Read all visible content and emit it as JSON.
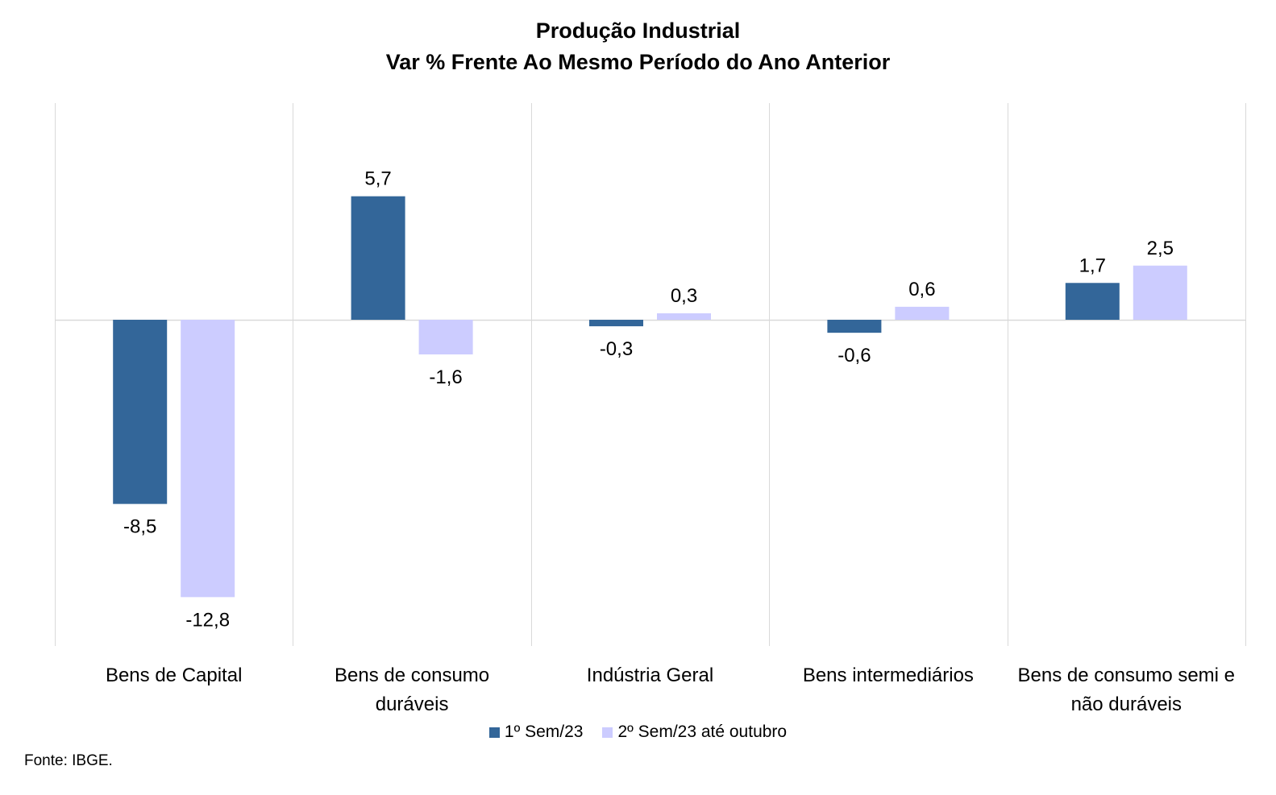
{
  "chart_data": {
    "type": "bar",
    "title": "Produção Industrial",
    "subtitle": "Var % Frente Ao Mesmo Período do Ano Anterior",
    "categories": [
      [
        "Bens de Capital"
      ],
      [
        "Bens de consumo",
        "duráveis"
      ],
      [
        "Indústria Geral"
      ],
      [
        "Bens intermediários"
      ],
      [
        "Bens de consumo semi e",
        "não duráveis"
      ]
    ],
    "series": [
      {
        "name": "1º Sem/23",
        "color": "#336699",
        "values": [
          -8.5,
          5.7,
          -0.3,
          -0.6,
          1.7
        ],
        "labels": [
          "-8,5",
          "5,7",
          "-0,3",
          "-0,6",
          "1,7"
        ]
      },
      {
        "name": "2º Sem/23 até outubro",
        "color": "#CCCCFF",
        "values": [
          -12.8,
          -1.6,
          0.3,
          0.6,
          2.5
        ],
        "labels": [
          "-12,8",
          "-1,6",
          "0,3",
          "0,6",
          "2,5"
        ]
      }
    ],
    "ylim": [
      -15,
      10
    ],
    "grid": false,
    "legend": "bottom",
    "source": "Fonte: IBGE."
  }
}
